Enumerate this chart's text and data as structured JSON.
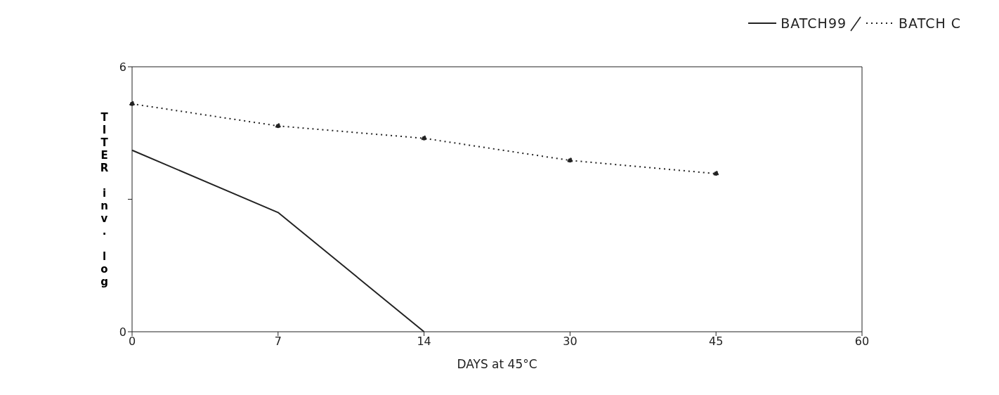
{
  "chart_data": {
    "type": "line",
    "xlabel": "DAYS at 45°C",
    "ylabel": "TITER inv. log",
    "categories": [
      "0",
      "7",
      "14",
      "30",
      "45",
      "60"
    ],
    "series": [
      {
        "name": "BATCH99",
        "color": "#222222",
        "values": [
          4.11,
          2.7,
          0,
          null,
          null,
          null
        ],
        "line_style": "solid",
        "marker": "none"
      },
      {
        "name": "BATCH C",
        "color": "#222222",
        "values": [
          5.16,
          4.66,
          4.38,
          3.88,
          3.58,
          null
        ],
        "line_style": "dotted",
        "marker": "circle"
      }
    ],
    "ylim": [
      0,
      6
    ],
    "yticks": [
      0,
      {
        "value": 3,
        "label": null
      },
      6
    ],
    "grid": false,
    "legend": "top right"
  }
}
